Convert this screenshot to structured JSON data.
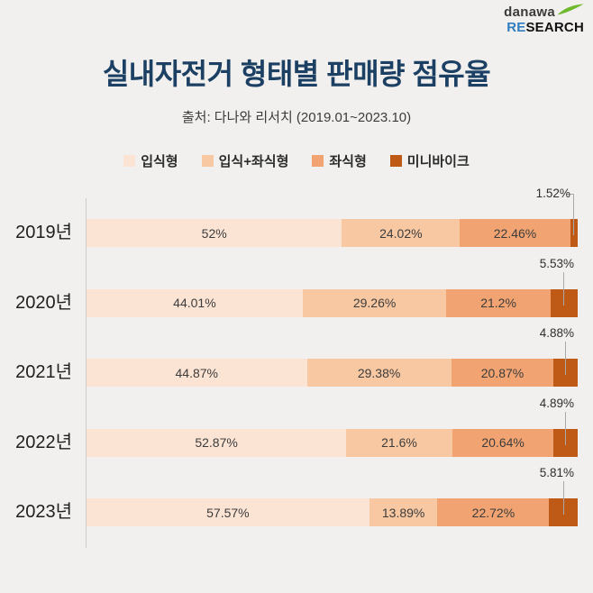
{
  "logo": {
    "brand": "danawa",
    "research_re": "RE",
    "research_rest": "SEARCH"
  },
  "header": {
    "title": "실내자전거 형태별 판매량 점유율",
    "subtitle": "출처: 다나와 리서치 (2019.01~2023.10)"
  },
  "colors": {
    "background": "#f1f0ee",
    "title": "#1c4063",
    "axis": "#cfcdc9",
    "segment_label": "#3c3c3c",
    "connector": "#a9a9a9",
    "logo_green": "#6fb92c",
    "logo_blue": "#2f7dc1"
  },
  "legend": [
    {
      "label": "입식형",
      "color": "#fbe4d4"
    },
    {
      "label": "입식+좌식형",
      "color": "#f8c8a2"
    },
    {
      "label": "좌식형",
      "color": "#f1a471"
    },
    {
      "label": "미니바이크",
      "color": "#bf5a16"
    }
  ],
  "chart_data": {
    "type": "bar",
    "stacked": true,
    "orientation": "horizontal",
    "title": "실내자전거 형태별 판매량 점유율",
    "categories": [
      "2019년",
      "2020년",
      "2021년",
      "2022년",
      "2023년"
    ],
    "series": [
      {
        "name": "입식형",
        "color": "#fbe4d4",
        "values": [
          52,
          44.01,
          44.87,
          52.87,
          57.57
        ]
      },
      {
        "name": "입식+좌식형",
        "color": "#f8c8a2",
        "values": [
          24.02,
          29.26,
          29.38,
          21.6,
          13.89
        ]
      },
      {
        "name": "좌식형",
        "color": "#f1a471",
        "values": [
          22.46,
          21.2,
          20.87,
          20.64,
          22.72
        ]
      },
      {
        "name": "미니바이크",
        "color": "#bf5a16",
        "values": [
          1.52,
          5.53,
          4.88,
          4.89,
          5.81
        ]
      }
    ],
    "value_labels": [
      [
        "52%",
        "24.02%",
        "22.46%",
        "1.52%"
      ],
      [
        "44.01%",
        "29.26%",
        "21.2%",
        "5.53%"
      ],
      [
        "44.87%",
        "29.38%",
        "20.87%",
        "4.88%"
      ],
      [
        "52.87%",
        "21.6%",
        "20.64%",
        "4.89%"
      ],
      [
        "57.57%",
        "13.89%",
        "22.72%",
        "5.81%"
      ]
    ],
    "xlim": [
      0,
      100
    ],
    "legend_position": "top",
    "grid": false
  }
}
